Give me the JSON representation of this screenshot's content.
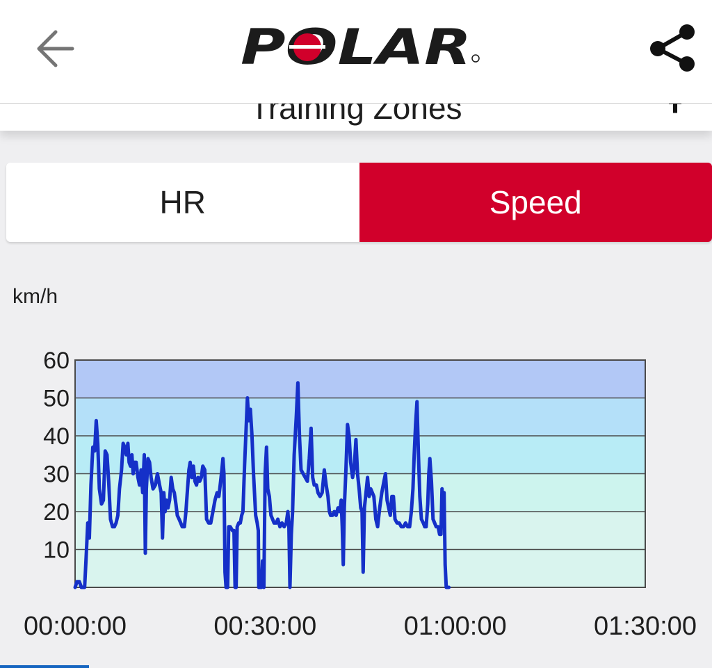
{
  "app": {
    "logo_text": "POLAR",
    "subheader_title": "Training Zones"
  },
  "icons": {
    "back": "arrow-left-icon",
    "share": "share-icon",
    "subheader_action": "pin-icon"
  },
  "tabs": [
    {
      "label": "HR",
      "selected": false
    },
    {
      "label": "Speed",
      "selected": true
    }
  ],
  "colors": {
    "accent": "#d1002b",
    "line": "#1530c8",
    "zones": [
      "#d9f4ee",
      "#cdf4ee",
      "#b8ecf6",
      "#b4e0f9",
      "#b2c8f6"
    ]
  },
  "chart_data": {
    "type": "line",
    "ylabel": "km/h",
    "xlabel": "",
    "ylim": [
      0,
      60
    ],
    "xlim": [
      0,
      5400
    ],
    "y_ticks": [
      10,
      20,
      30,
      40,
      50,
      60
    ],
    "x_ticks": [
      {
        "value": 0,
        "label": "00:00:00"
      },
      {
        "value": 1800,
        "label": "00:30:00"
      },
      {
        "value": 3600,
        "label": "01:00:00"
      },
      {
        "value": 5400,
        "label": "01:30:00"
      }
    ],
    "zones": [
      {
        "from": 0,
        "to": 20
      },
      {
        "from": 20,
        "to": 30
      },
      {
        "from": 30,
        "to": 40
      },
      {
        "from": 40,
        "to": 50
      },
      {
        "from": 50,
        "to": 60
      }
    ],
    "grid": true,
    "series": [
      {
        "points": [
          [
            0,
            0
          ],
          [
            18,
            1.5
          ],
          [
            40,
            1.5
          ],
          [
            60,
            0
          ],
          [
            90,
            0
          ],
          [
            105,
            8
          ],
          [
            120,
            17
          ],
          [
            135,
            13
          ],
          [
            150,
            27
          ],
          [
            168,
            37
          ],
          [
            185,
            36
          ],
          [
            200,
            44
          ],
          [
            215,
            38
          ],
          [
            230,
            26
          ],
          [
            250,
            22
          ],
          [
            268,
            23
          ],
          [
            285,
            36
          ],
          [
            302,
            35
          ],
          [
            318,
            28
          ],
          [
            335,
            18
          ],
          [
            355,
            16
          ],
          [
            372,
            16
          ],
          [
            388,
            17
          ],
          [
            405,
            19
          ],
          [
            420,
            26
          ],
          [
            440,
            31
          ],
          [
            455,
            38
          ],
          [
            470,
            37
          ],
          [
            485,
            35
          ],
          [
            500,
            38
          ],
          [
            512,
            33
          ],
          [
            525,
            32
          ],
          [
            538,
            35
          ],
          [
            550,
            30
          ],
          [
            563,
            33
          ],
          [
            578,
            33
          ],
          [
            595,
            29
          ],
          [
            610,
            27
          ],
          [
            625,
            31
          ],
          [
            640,
            25
          ],
          [
            655,
            35
          ],
          [
            665,
            9
          ],
          [
            675,
            26
          ],
          [
            690,
            34
          ],
          [
            705,
            33
          ],
          [
            720,
            29
          ],
          [
            738,
            26
          ],
          [
            760,
            27
          ],
          [
            780,
            30
          ],
          [
            800,
            27
          ],
          [
            815,
            25
          ],
          [
            828,
            13
          ],
          [
            840,
            25
          ],
          [
            852,
            20
          ],
          [
            866,
            23
          ],
          [
            880,
            21
          ],
          [
            895,
            23
          ],
          [
            910,
            29
          ],
          [
            925,
            26
          ],
          [
            940,
            25
          ],
          [
            955,
            22
          ],
          [
            968,
            19
          ],
          [
            985,
            18
          ],
          [
            1000,
            17
          ],
          [
            1015,
            16
          ],
          [
            1035,
            16
          ],
          [
            1050,
            20
          ],
          [
            1065,
            26
          ],
          [
            1078,
            31
          ],
          [
            1090,
            33
          ],
          [
            1105,
            29
          ],
          [
            1120,
            32
          ],
          [
            1135,
            28
          ],
          [
            1150,
            27
          ],
          [
            1165,
            29
          ],
          [
            1180,
            28
          ],
          [
            1195,
            29
          ],
          [
            1210,
            32
          ],
          [
            1228,
            31
          ],
          [
            1245,
            18
          ],
          [
            1265,
            17
          ],
          [
            1285,
            17
          ],
          [
            1305,
            20
          ],
          [
            1325,
            23
          ],
          [
            1345,
            25
          ],
          [
            1362,
            24
          ],
          [
            1378,
            28
          ],
          [
            1390,
            31
          ],
          [
            1400,
            34
          ],
          [
            1410,
            30
          ],
          [
            1420,
            4
          ],
          [
            1430,
            0
          ],
          [
            1445,
            0
          ],
          [
            1455,
            16
          ],
          [
            1470,
            16
          ],
          [
            1490,
            15
          ],
          [
            1505,
            15
          ],
          [
            1515,
            0
          ],
          [
            1525,
            0
          ],
          [
            1535,
            16
          ],
          [
            1550,
            17
          ],
          [
            1565,
            17
          ],
          [
            1578,
            19
          ],
          [
            1590,
            20
          ],
          [
            1605,
            32
          ],
          [
            1620,
            42
          ],
          [
            1632,
            50
          ],
          [
            1645,
            44
          ],
          [
            1660,
            47
          ],
          [
            1675,
            40
          ],
          [
            1690,
            30
          ],
          [
            1710,
            19
          ],
          [
            1725,
            17
          ],
          [
            1735,
            15
          ],
          [
            1740,
            0
          ],
          [
            1752,
            0
          ],
          [
            1765,
            0
          ],
          [
            1775,
            7
          ],
          [
            1788,
            0
          ],
          [
            1800,
            30
          ],
          [
            1813,
            37
          ],
          [
            1825,
            26
          ],
          [
            1840,
            24
          ],
          [
            1855,
            19
          ],
          [
            1870,
            18
          ],
          [
            1885,
            17
          ],
          [
            1905,
            17
          ],
          [
            1920,
            18
          ],
          [
            1940,
            16
          ],
          [
            1960,
            17
          ],
          [
            1980,
            16
          ],
          [
            2000,
            17
          ],
          [
            2015,
            20
          ],
          [
            2025,
            16
          ],
          [
            2035,
            0
          ],
          [
            2048,
            14
          ],
          [
            2060,
            20
          ],
          [
            2075,
            35
          ],
          [
            2095,
            45
          ],
          [
            2110,
            54
          ],
          [
            2125,
            40
          ],
          [
            2140,
            31
          ],
          [
            2160,
            30
          ],
          [
            2180,
            29
          ],
          [
            2200,
            28
          ],
          [
            2218,
            34
          ],
          [
            2235,
            42
          ],
          [
            2250,
            29
          ],
          [
            2265,
            27
          ],
          [
            2285,
            27
          ],
          [
            2300,
            25
          ],
          [
            2320,
            24
          ],
          [
            2340,
            25
          ],
          [
            2360,
            31
          ],
          [
            2378,
            27
          ],
          [
            2395,
            24
          ],
          [
            2408,
            20
          ],
          [
            2420,
            19
          ],
          [
            2438,
            19
          ],
          [
            2455,
            20
          ],
          [
            2472,
            19
          ],
          [
            2490,
            21
          ],
          [
            2508,
            20
          ],
          [
            2520,
            23
          ],
          [
            2530,
            16
          ],
          [
            2540,
            6
          ],
          [
            2550,
            21
          ],
          [
            2565,
            31
          ],
          [
            2580,
            43
          ],
          [
            2595,
            40
          ],
          [
            2610,
            33
          ],
          [
            2628,
            29
          ],
          [
            2645,
            32
          ],
          [
            2660,
            39
          ],
          [
            2675,
            30
          ],
          [
            2690,
            26
          ],
          [
            2705,
            21
          ],
          [
            2718,
            20
          ],
          [
            2728,
            4
          ],
          [
            2740,
            21
          ],
          [
            2755,
            25
          ],
          [
            2770,
            29
          ],
          [
            2785,
            24
          ],
          [
            2800,
            26
          ],
          [
            2815,
            25
          ],
          [
            2830,
            24
          ],
          [
            2848,
            18
          ],
          [
            2865,
            16
          ],
          [
            2885,
            21
          ],
          [
            2905,
            25
          ],
          [
            2925,
            28
          ],
          [
            2940,
            30
          ],
          [
            2955,
            23
          ],
          [
            2970,
            21
          ],
          [
            2985,
            19
          ],
          [
            3000,
            24
          ],
          [
            3015,
            24
          ],
          [
            3030,
            18
          ],
          [
            3050,
            17
          ],
          [
            3070,
            17
          ],
          [
            3090,
            16
          ],
          [
            3110,
            16
          ],
          [
            3130,
            17
          ],
          [
            3150,
            16
          ],
          [
            3168,
            16
          ],
          [
            3185,
            20
          ],
          [
            3200,
            26
          ],
          [
            3212,
            35
          ],
          [
            3225,
            43
          ],
          [
            3238,
            49
          ],
          [
            3252,
            35
          ],
          [
            3265,
            24
          ],
          [
            3280,
            18
          ],
          [
            3298,
            17
          ],
          [
            3312,
            16
          ],
          [
            3325,
            16
          ],
          [
            3340,
            22
          ],
          [
            3350,
            30
          ],
          [
            3360,
            34
          ],
          [
            3375,
            28
          ],
          [
            3390,
            18
          ],
          [
            3405,
            17
          ],
          [
            3420,
            16
          ],
          [
            3438,
            16
          ],
          [
            3452,
            14
          ],
          [
            3465,
            14
          ],
          [
            3475,
            26
          ],
          [
            3485,
            22
          ],
          [
            3495,
            25
          ],
          [
            3505,
            6
          ],
          [
            3515,
            0
          ],
          [
            3540,
            0
          ]
        ]
      }
    ]
  }
}
